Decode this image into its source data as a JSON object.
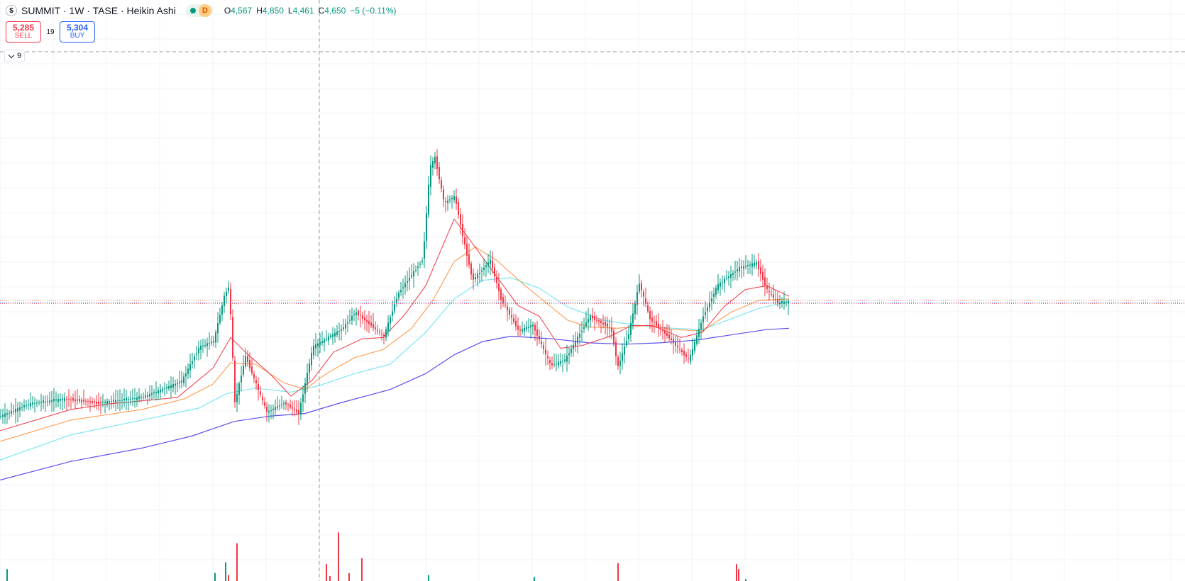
{
  "header": {
    "symbol_icon": "$",
    "title": "SUMMIT · 1W · TASE · Heikin Ashi",
    "status_badge": "D",
    "ohlc": {
      "o_label": "O",
      "o": "4,567",
      "h_label": "H",
      "h": "4,850",
      "l_label": "L",
      "l": "4,461",
      "c_label": "C",
      "c": "4,650",
      "change": "−5 (−0.11%)"
    }
  },
  "trade": {
    "sell_price": "5,285",
    "sell_label": "SELL",
    "spread": "19",
    "buy_price": "5,304",
    "buy_label": "BUY"
  },
  "indicators_toggle": {
    "count": "9"
  },
  "colors": {
    "up": "#089981",
    "down": "#f23645",
    "ma_fast": "#f23645",
    "ma_mid": "#ff9a4d",
    "ma_slow": "#7be7f2",
    "ma_long": "#5b4ff0",
    "grid": "#f0f3fa",
    "crosshair": "#9598a1"
  },
  "chart_data": {
    "type": "candlestick",
    "anchors": [
      [
        0,
        4200
      ],
      [
        40,
        4290
      ],
      [
        90,
        4330
      ],
      [
        140,
        4300
      ],
      [
        200,
        4340
      ],
      [
        255,
        4460
      ],
      [
        280,
        4720
      ],
      [
        300,
        4760
      ],
      [
        315,
        5100
      ],
      [
        322,
        5180
      ],
      [
        330,
        4300
      ],
      [
        345,
        4650
      ],
      [
        375,
        4230
      ],
      [
        400,
        4300
      ],
      [
        420,
        4220
      ],
      [
        440,
        4720
      ],
      [
        480,
        4850
      ],
      [
        500,
        4980
      ],
      [
        540,
        4800
      ],
      [
        560,
        5120
      ],
      [
        595,
        5380
      ],
      [
        605,
        6070
      ],
      [
        612,
        6140
      ],
      [
        625,
        5800
      ],
      [
        640,
        5850
      ],
      [
        652,
        5530
      ],
      [
        665,
        5220
      ],
      [
        690,
        5370
      ],
      [
        705,
        5080
      ],
      [
        730,
        4840
      ],
      [
        750,
        4880
      ],
      [
        775,
        4580
      ],
      [
        795,
        4620
      ],
      [
        830,
        4950
      ],
      [
        860,
        4860
      ],
      [
        870,
        4570
      ],
      [
        885,
        4820
      ],
      [
        900,
        5200
      ],
      [
        915,
        4930
      ],
      [
        940,
        4800
      ],
      [
        970,
        4620
      ],
      [
        990,
        4950
      ],
      [
        1010,
        5180
      ],
      [
        1040,
        5310
      ],
      [
        1065,
        5350
      ],
      [
        1080,
        5150
      ],
      [
        1095,
        5050
      ],
      [
        1112,
        5060
      ]
    ],
    "candle_spacing": 3,
    "ma_fast": [
      [
        0,
        4090
      ],
      [
        100,
        4250
      ],
      [
        150,
        4290
      ],
      [
        250,
        4340
      ],
      [
        300,
        4560
      ],
      [
        325,
        4790
      ],
      [
        350,
        4660
      ],
      [
        380,
        4520
      ],
      [
        410,
        4350
      ],
      [
        440,
        4470
      ],
      [
        470,
        4680
      ],
      [
        510,
        4780
      ],
      [
        540,
        4790
      ],
      [
        570,
        4960
      ],
      [
        600,
        5180
      ],
      [
        620,
        5430
      ],
      [
        640,
        5680
      ],
      [
        660,
        5540
      ],
      [
        690,
        5320
      ],
      [
        730,
        5030
      ],
      [
        760,
        4950
      ],
      [
        790,
        4710
      ],
      [
        820,
        4730
      ],
      [
        860,
        4800
      ],
      [
        890,
        4880
      ],
      [
        920,
        4880
      ],
      [
        960,
        4790
      ],
      [
        990,
        4830
      ],
      [
        1020,
        5020
      ],
      [
        1050,
        5150
      ],
      [
        1080,
        5180
      ],
      [
        1112,
        5100
      ]
    ],
    "ma_mid": [
      [
        0,
        4010
      ],
      [
        100,
        4170
      ],
      [
        200,
        4250
      ],
      [
        260,
        4330
      ],
      [
        300,
        4440
      ],
      [
        325,
        4600
      ],
      [
        360,
        4590
      ],
      [
        400,
        4450
      ],
      [
        430,
        4400
      ],
      [
        460,
        4520
      ],
      [
        500,
        4640
      ],
      [
        540,
        4700
      ],
      [
        580,
        4860
      ],
      [
        610,
        5070
      ],
      [
        640,
        5360
      ],
      [
        670,
        5470
      ],
      [
        700,
        5370
      ],
      [
        740,
        5180
      ],
      [
        770,
        5050
      ],
      [
        800,
        4920
      ],
      [
        830,
        4870
      ],
      [
        870,
        4860
      ],
      [
        910,
        4880
      ],
      [
        950,
        4850
      ],
      [
        990,
        4840
      ],
      [
        1030,
        4980
      ],
      [
        1070,
        5070
      ],
      [
        1112,
        5080
      ]
    ],
    "ma_slow": [
      [
        0,
        3870
      ],
      [
        100,
        4060
      ],
      [
        200,
        4170
      ],
      [
        280,
        4260
      ],
      [
        320,
        4370
      ],
      [
        360,
        4410
      ],
      [
        410,
        4380
      ],
      [
        450,
        4430
      ],
      [
        500,
        4520
      ],
      [
        550,
        4590
      ],
      [
        600,
        4830
      ],
      [
        640,
        5080
      ],
      [
        680,
        5220
      ],
      [
        720,
        5240
      ],
      [
        760,
        5160
      ],
      [
        800,
        5020
      ],
      [
        850,
        4920
      ],
      [
        900,
        4880
      ],
      [
        950,
        4860
      ],
      [
        990,
        4850
      ],
      [
        1030,
        4930
      ],
      [
        1070,
        5010
      ],
      [
        1112,
        5060
      ]
    ],
    "ma_long": [
      [
        0,
        3720
      ],
      [
        100,
        3860
      ],
      [
        200,
        3960
      ],
      [
        270,
        4050
      ],
      [
        330,
        4160
      ],
      [
        380,
        4200
      ],
      [
        430,
        4220
      ],
      [
        480,
        4300
      ],
      [
        550,
        4400
      ],
      [
        600,
        4520
      ],
      [
        640,
        4660
      ],
      [
        680,
        4760
      ],
      [
        720,
        4800
      ],
      [
        780,
        4780
      ],
      [
        830,
        4750
      ],
      [
        880,
        4740
      ],
      [
        930,
        4750
      ],
      [
        980,
        4770
      ],
      [
        1030,
        4810
      ],
      [
        1080,
        4850
      ],
      [
        1112,
        4860
      ]
    ],
    "volume": [
      [
        10,
        0.12
      ],
      [
        303,
        0.08
      ],
      [
        318,
        0.19
      ],
      [
        322,
        0.06
      ],
      [
        334,
        0.38
      ],
      [
        460,
        0.17
      ],
      [
        465,
        0.05
      ],
      [
        477,
        0.49
      ],
      [
        492,
        0.08
      ],
      [
        510,
        0.23
      ],
      [
        604,
        0.06
      ],
      [
        753,
        0.04
      ],
      [
        871,
        0.18
      ],
      [
        1038,
        0.17
      ],
      [
        1041,
        0.12
      ],
      [
        1051,
        0.02
      ]
    ],
    "price_lines": [
      5070,
      5055,
      5045
    ],
    "crosshair_price": 6780,
    "y_range": [
      3600,
      6900
    ]
  }
}
